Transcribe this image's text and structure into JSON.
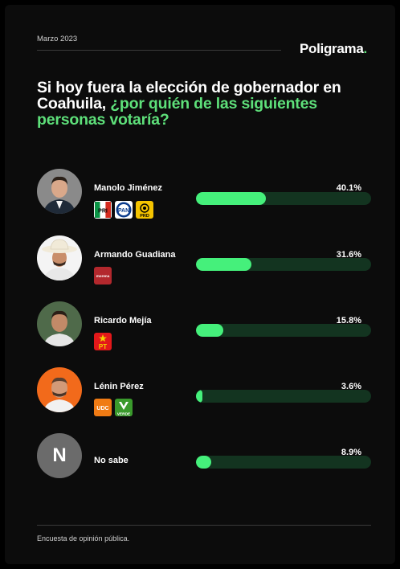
{
  "header": {
    "date": "Marzo 2023",
    "brand": "Poligrama",
    "brand_dot": "."
  },
  "title": {
    "part1": "Si hoy fuera la elección de gobernador en Coahuila, ",
    "highlight": "¿por quién de las siguientes personas votaría?"
  },
  "colors": {
    "accent": "#45f07b",
    "track": "#133420",
    "background": "#0c0c0c"
  },
  "chart_data": {
    "type": "bar",
    "categories": [
      "Manolo Jiménez",
      "Armando Guadiana",
      "Ricardo Mejía",
      "Lénin Pérez",
      "No sabe"
    ],
    "values": [
      40.1,
      31.6,
      15.8,
      3.6,
      8.9
    ],
    "labels": [
      "40.1%",
      "31.6%",
      "15.8%",
      "3.6%",
      "8.9%"
    ],
    "ylim": [
      0,
      100
    ]
  },
  "candidates": [
    {
      "name": "Manolo Jiménez",
      "pct": "40.1%",
      "parties": [
        "PRI",
        "PAN",
        "PRD"
      ]
    },
    {
      "name": "Armando Guadiana",
      "pct": "31.6%",
      "parties": [
        "morena"
      ]
    },
    {
      "name": "Ricardo Mejía",
      "pct": "15.8%",
      "parties": [
        "PT"
      ]
    },
    {
      "name": "Lénin Pérez",
      "pct": "3.6%",
      "parties": [
        "UDC",
        "VERDE"
      ]
    },
    {
      "name": "No sabe",
      "pct": "8.9%",
      "avatar_letter": "N"
    }
  ],
  "footer": {
    "note": "Encuesta de opinión pública."
  }
}
